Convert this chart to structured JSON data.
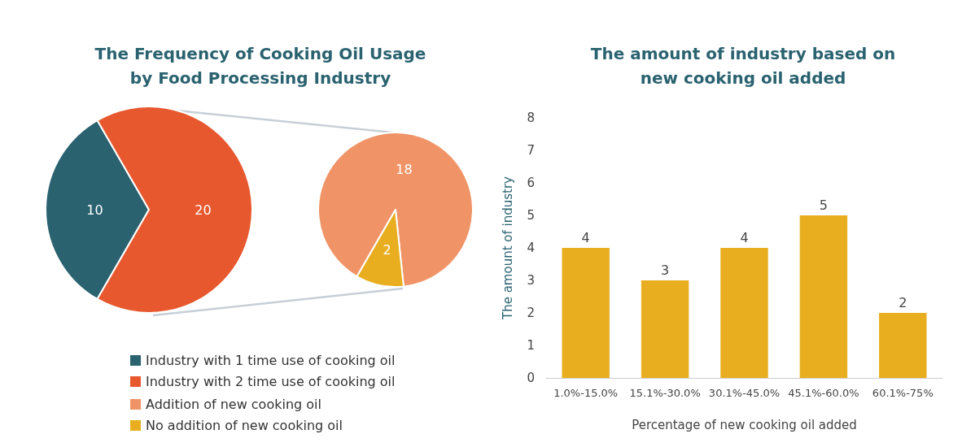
{
  "chart_data": [
    {
      "type": "pie",
      "title": "The Frequency of Cooking Oil Usage\nby Food Processing Industry",
      "categories": [
        "Industry with 1 time use of cooking oil",
        "Industry with 2 time use of cooking oil"
      ],
      "values": [
        10,
        20
      ],
      "colors": [
        "#2a6270",
        "#e8582e"
      ],
      "data_labels": true,
      "legend": "bottom"
    },
    {
      "type": "pie",
      "categories": [
        "Addition of new cooking oil",
        "No addition of new cooking oil"
      ],
      "values": [
        18,
        2
      ],
      "colors": [
        "#f09467",
        "#e8ae1f"
      ],
      "data_labels": true,
      "legend": "bottom"
    },
    {
      "type": "bar",
      "title": "The amount of industry based on\nnew cooking oil added",
      "categories": [
        "1.0%-15.0%",
        "15.1%-30.0%",
        "30.1%-45.0%",
        "45.1%-60.0%",
        "60.1%-75%"
      ],
      "values": [
        4,
        3,
        4,
        5,
        2
      ],
      "color": "#e8ae1f",
      "ylim": [
        0,
        8
      ],
      "yticks": [
        0,
        1,
        2,
        3,
        4,
        5,
        6,
        7,
        8
      ],
      "xlabel": "Percentage of new cooking oil added",
      "ylabel": "The amount of industry",
      "data_labels": true,
      "grid": false
    }
  ]
}
